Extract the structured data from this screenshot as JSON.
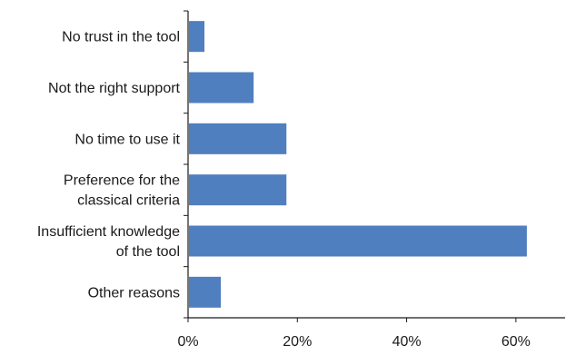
{
  "chart_data": {
    "type": "bar",
    "orientation": "horizontal",
    "categories": [
      [
        "No trust in the tool"
      ],
      [
        "Not the right support"
      ],
      [
        "No time to use it"
      ],
      [
        "Preference for the",
        "classical criteria"
      ],
      [
        "Insufficient knowledge",
        "of the tool"
      ],
      [
        "Other reasons"
      ]
    ],
    "values": [
      3,
      12,
      18,
      18,
      62,
      6
    ],
    "value_unit": "%",
    "xlim": [
      0,
      69
    ],
    "xticks": [
      0,
      20,
      40,
      60
    ],
    "xtick_labels": [
      "0%",
      "20%",
      "40%",
      "60%"
    ],
    "title": "",
    "xlabel": "",
    "ylabel": "",
    "grid": false,
    "legend": "none",
    "bar_color": "#4f7fbe",
    "axis_color": "#1a1a1a"
  }
}
